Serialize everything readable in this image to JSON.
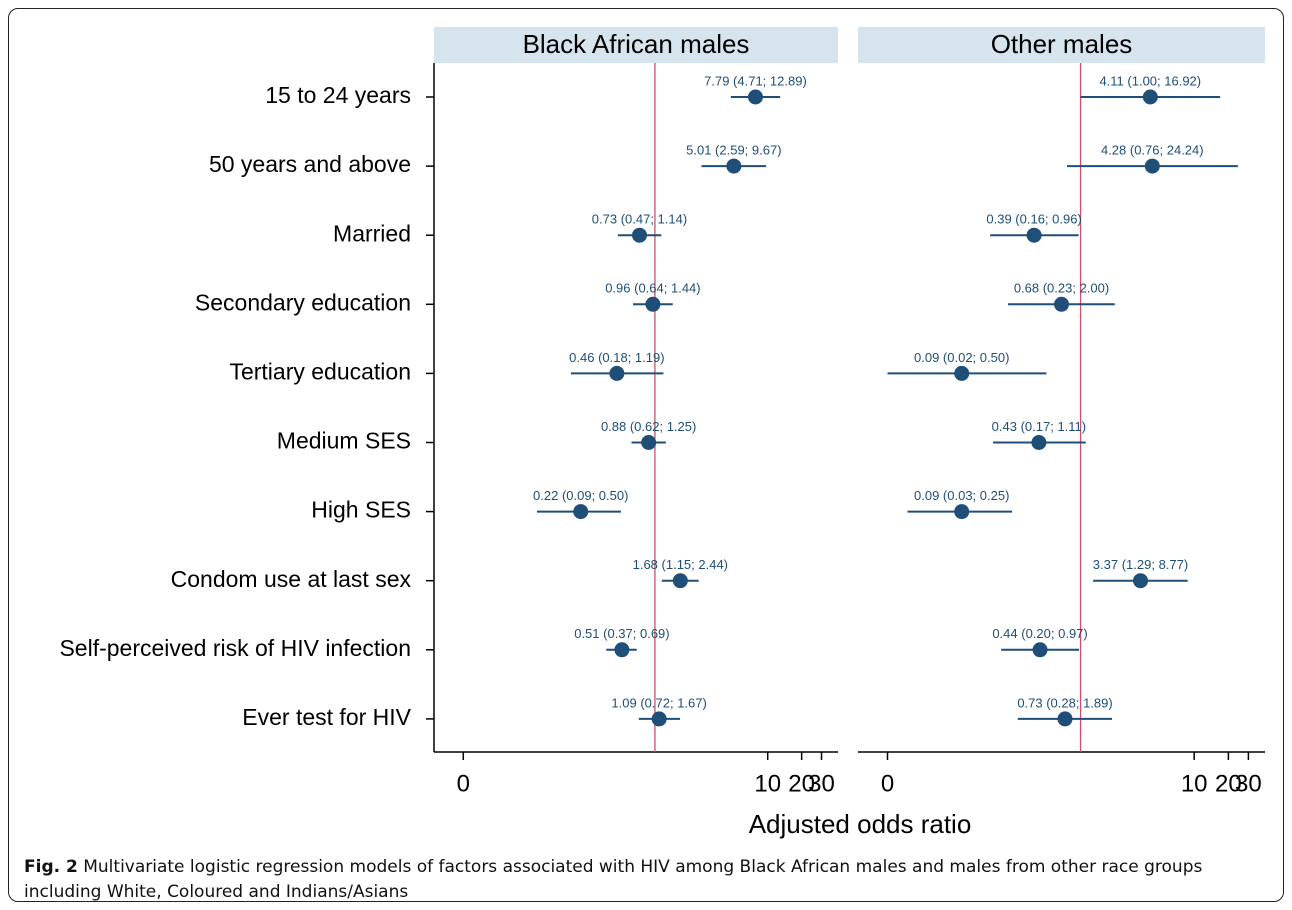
{
  "chart_data": {
    "type": "forest",
    "categories": [
      "15 to 24 years",
      "50 years and above",
      "Married",
      "Secondary education",
      "Tertiary education",
      "Medium SES",
      "High SES",
      "Condom use at last sex",
      "Self-perceived risk of HIV infection",
      "Ever test for HIV"
    ],
    "xlabel": "Adjusted odds ratio",
    "xscale": "log",
    "xlim": [
      0.011,
      42
    ],
    "xticks": [
      {
        "value": 0.02,
        "label": "0"
      },
      10,
      20,
      30
    ],
    "refline": 1,
    "color": "#1f4e79",
    "refline_color": "#c8506e",
    "panels": [
      {
        "title": "Black African males",
        "values": [
          7.79,
          5.01,
          0.73,
          0.96,
          0.46,
          0.88,
          0.22,
          1.68,
          0.51,
          1.09
        ],
        "lower": [
          4.71,
          2.59,
          0.47,
          0.64,
          0.18,
          0.62,
          0.09,
          1.15,
          0.37,
          0.72
        ],
        "upper": [
          12.89,
          9.67,
          1.14,
          1.44,
          1.19,
          1.25,
          0.5,
          2.44,
          0.69,
          1.67
        ],
        "value_labels": [
          "7.79 (4.71; 12.89)",
          "5.01 (2.59; 9.67)",
          "0.73 (0.47; 1.14)",
          "0.96 (0.64; 1.44)",
          "0.46 (0.18; 1.19)",
          "0.88 (0.62; 1.25)",
          "0.22 (0.09; 0.50)",
          "1.68 (1.15; 2.44)",
          "0.51 (0.37; 0.69)",
          "1.09 (0.72; 1.67)"
        ]
      },
      {
        "title": "Other males",
        "values": [
          4.11,
          4.28,
          0.39,
          0.68,
          0.09,
          0.43,
          0.09,
          3.37,
          0.44,
          0.73
        ],
        "lower": [
          1.0,
          0.76,
          0.16,
          0.23,
          0.02,
          0.17,
          0.03,
          1.29,
          0.2,
          0.28
        ],
        "upper": [
          16.92,
          24.24,
          0.96,
          2.0,
          0.5,
          1.11,
          0.25,
          8.77,
          0.97,
          1.89
        ],
        "value_labels": [
          "4.11 (1.00; 16.92)",
          "4.28 (0.76; 24.24)",
          "0.39 (0.16; 0.96)",
          "0.68 (0.23; 2.00)",
          "0.09 (0.02; 0.50)",
          "0.43 (0.17; 1.11)",
          "0.09 (0.03; 0.25)",
          "3.37 (1.29; 8.77)",
          "0.44 (0.20; 0.97)",
          "0.73 (0.28; 1.89)"
        ]
      }
    ]
  },
  "caption": {
    "label": "Fig. 2",
    "text": "Multivariate logistic regression models of factors associated with HIV among Black African males and males from other race groups including White, Coloured and Indians/Asians"
  }
}
